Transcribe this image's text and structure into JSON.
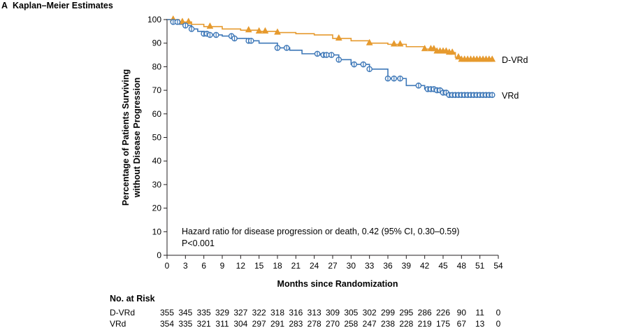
{
  "panel": {
    "letter": "A",
    "title": "Kaplan–Meier Estimates"
  },
  "chart_data": {
    "type": "line",
    "xlabel": "Months since Randomization",
    "ylabel_line1": "Percentage of Patients Surviving",
    "ylabel_line2": "without Disease Progression",
    "xlim": [
      0,
      54
    ],
    "ylim": [
      0,
      100
    ],
    "x_ticks": [
      0,
      3,
      6,
      9,
      12,
      15,
      18,
      21,
      24,
      27,
      30,
      33,
      36,
      39,
      42,
      45,
      48,
      51,
      54
    ],
    "y_ticks": [
      0,
      10,
      20,
      30,
      40,
      50,
      60,
      70,
      80,
      90,
      100
    ],
    "grid": false,
    "annotation": {
      "line1": "Hazard ratio for disease progression or death, 0.42 (95% CI, 0.30–0.59)",
      "line2": "P<0.001"
    },
    "series": [
      {
        "name": "D-VRd",
        "color": "#e69a2e",
        "marker": "triangle",
        "points": [
          [
            0,
            100
          ],
          [
            2,
            99
          ],
          [
            4,
            98
          ],
          [
            6,
            97
          ],
          [
            9,
            96
          ],
          [
            12,
            95.5
          ],
          [
            15,
            95
          ],
          [
            18,
            94.5
          ],
          [
            21,
            94
          ],
          [
            24,
            93.5
          ],
          [
            27,
            92
          ],
          [
            30,
            91
          ],
          [
            33,
            90
          ],
          [
            36,
            89.5
          ],
          [
            39,
            88.5
          ],
          [
            42,
            87.5
          ],
          [
            44,
            86.5
          ],
          [
            46,
            86
          ],
          [
            47,
            84
          ],
          [
            48,
            83
          ],
          [
            53,
            83
          ]
        ],
        "censor_x": [
          1,
          2.5,
          3.5,
          7,
          13.3,
          15,
          16,
          18,
          28,
          33,
          37,
          38,
          42,
          43,
          43.5,
          44,
          44.5,
          45,
          45.5,
          46,
          46.5,
          47.5,
          48,
          48.5,
          49,
          49.5,
          50,
          50.5,
          51,
          51.5,
          52,
          52.5,
          53
        ]
      },
      {
        "name": "VRd",
        "color": "#3e78b8",
        "marker": "circle",
        "points": [
          [
            0,
            100
          ],
          [
            1,
            99
          ],
          [
            2,
            98
          ],
          [
            3,
            97.5
          ],
          [
            4,
            96
          ],
          [
            5,
            95
          ],
          [
            6,
            94
          ],
          [
            7,
            93.5
          ],
          [
            9,
            93
          ],
          [
            11,
            92
          ],
          [
            13,
            91
          ],
          [
            15,
            90
          ],
          [
            18,
            88
          ],
          [
            20,
            87
          ],
          [
            22,
            85.5
          ],
          [
            25,
            85
          ],
          [
            28,
            83
          ],
          [
            30,
            81
          ],
          [
            33,
            79
          ],
          [
            36,
            75
          ],
          [
            39,
            72
          ],
          [
            42,
            70.5
          ],
          [
            44,
            70
          ],
          [
            45,
            69
          ],
          [
            46,
            68
          ],
          [
            53,
            68
          ]
        ],
        "censor_x": [
          1,
          1.7,
          3,
          4,
          6,
          6.5,
          7,
          8,
          10.5,
          11,
          13.3,
          13.7,
          18,
          19.5,
          24.5,
          25.5,
          26,
          26.8,
          28,
          30.5,
          32,
          33,
          36,
          37,
          38,
          41,
          42.5,
          43,
          43.5,
          44,
          44.5,
          45,
          45.5,
          46,
          46.5,
          47,
          47.5,
          48,
          48.5,
          49,
          49.5,
          50,
          50.5,
          51,
          51.5,
          52,
          52.5,
          53
        ]
      }
    ]
  },
  "risk_table": {
    "title": "No. at Risk",
    "rows": [
      {
        "label": "D-VRd",
        "values": [
          "355",
          "345",
          "335",
          "329",
          "327",
          "322",
          "318",
          "316",
          "313",
          "309",
          "305",
          "302",
          "299",
          "295",
          "286",
          "226",
          "90",
          "11",
          "0"
        ]
      },
      {
        "label": "VRd",
        "values": [
          "354",
          "335",
          "321",
          "311",
          "304",
          "297",
          "291",
          "283",
          "278",
          "270",
          "258",
          "247",
          "238",
          "228",
          "219",
          "175",
          "67",
          "13",
          "0"
        ]
      }
    ]
  }
}
